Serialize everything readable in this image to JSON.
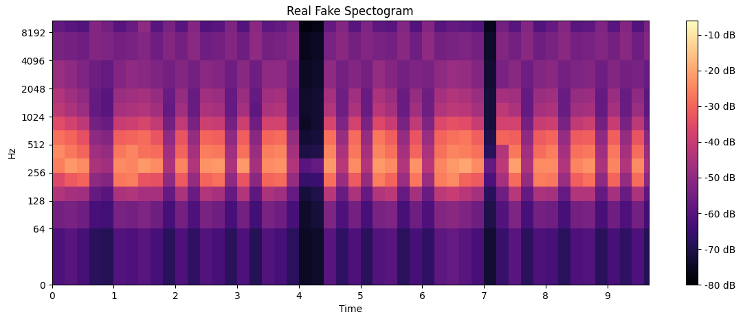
{
  "chart_data": {
    "type": "heatmap",
    "title": "Real Fake Spectogram",
    "x_label": "Time",
    "y_label": "Hz",
    "log": "y",
    "xlim": [
      0,
      9.67
    ],
    "xticks": [
      0,
      1,
      2,
      3,
      4,
      5,
      6,
      7,
      8,
      9
    ],
    "ylim": [
      0,
      11025
    ],
    "yticks": [
      0,
      64,
      128,
      256,
      512,
      1024,
      2048,
      4096,
      8192
    ],
    "time_edges": [
      0,
      0.2,
      0.4,
      0.6,
      0.8,
      1.0,
      1.2,
      1.4,
      1.6,
      1.8,
      2.0,
      2.2,
      2.4,
      2.6,
      2.8,
      3.0,
      3.2,
      3.4,
      3.6,
      3.8,
      4.0,
      4.2,
      4.4,
      4.6,
      4.8,
      5.0,
      5.2,
      5.4,
      5.6,
      5.8,
      6.0,
      6.2,
      6.4,
      6.6,
      6.8,
      7.0,
      7.2,
      7.4,
      7.6,
      7.8,
      8.0,
      8.2,
      8.4,
      8.6,
      8.8,
      9.0,
      9.2,
      9.4,
      9.6,
      9.67
    ],
    "freq_edges": [
      0,
      64,
      128,
      181,
      256,
      362,
      512,
      724,
      1024,
      1448,
      2048,
      4096,
      8192,
      11025
    ],
    "cells": [
      [
        -62,
        -60,
        -63,
        -68,
        -69,
        -61,
        -62,
        -60,
        -63,
        -68,
        -62,
        -67,
        -61,
        -63,
        -68,
        -62,
        -69,
        -61,
        -63,
        -68,
        -75,
        -74,
        -60,
        -67,
        -62,
        -68,
        -61,
        -60,
        -68,
        -63,
        -67,
        -59,
        -58,
        -60,
        -63,
        -73,
        -66,
        -60,
        -68,
        -62,
        -63,
        -68,
        -62,
        -61,
        -68,
        -63,
        -67,
        -62,
        -69
      ],
      [
        -55,
        -54,
        -56,
        -63,
        -64,
        -54,
        -55,
        -53,
        -56,
        -63,
        -55,
        -62,
        -54,
        -56,
        -63,
        -55,
        -64,
        -54,
        -56,
        -63,
        -74,
        -72,
        -53,
        -62,
        -55,
        -63,
        -54,
        -53,
        -63,
        -56,
        -62,
        -52,
        -51,
        -53,
        -56,
        -70,
        -61,
        -53,
        -63,
        -55,
        -56,
        -63,
        -55,
        -54,
        -63,
        -56,
        -62,
        -55,
        -64
      ],
      [
        -44,
        -46,
        -47,
        -58,
        -60,
        -45,
        -44,
        -46,
        -46,
        -58,
        -45,
        -57,
        -44,
        -46,
        -58,
        -44,
        -59,
        -45,
        -47,
        -58,
        -72,
        -70,
        -43,
        -57,
        -45,
        -58,
        -44,
        -42,
        -58,
        -46,
        -57,
        -42,
        -40,
        -43,
        -46,
        -68,
        -56,
        -43,
        -58,
        -45,
        -46,
        -58,
        -44,
        -44,
        -58,
        -46,
        -57,
        -45,
        -59
      ],
      [
        -36,
        -32,
        -30,
        -50,
        -52,
        -27,
        -26,
        -33,
        -34,
        -50,
        -32,
        -49,
        -30,
        -28,
        -50,
        -33,
        -51,
        -30,
        -29,
        -49,
        -66,
        -65,
        -28,
        -48,
        -32,
        -49,
        -26,
        -30,
        -48,
        -27,
        -48,
        -26,
        -24,
        -30,
        -32,
        -62,
        -46,
        -29,
        -49,
        -26,
        -27,
        -48,
        -31,
        -28,
        -50,
        -30,
        -49,
        -29,
        -51
      ],
      [
        -26,
        -22,
        -24,
        -45,
        -47,
        -24,
        -25,
        -22,
        -24,
        -45,
        -25,
        -44,
        -23,
        -22,
        -45,
        -22,
        -46,
        -24,
        -23,
        -44,
        -60,
        -58,
        -22,
        -43,
        -24,
        -44,
        -22,
        -24,
        -44,
        -23,
        -43,
        -25,
        -22,
        -20,
        -24,
        -58,
        -42,
        -21,
        -45,
        -24,
        -24,
        -44,
        -25,
        -23,
        -45,
        -25,
        -44,
        -24,
        -46
      ],
      [
        -24,
        -27,
        -30,
        -47,
        -49,
        -27,
        -25,
        -28,
        -29,
        -47,
        -30,
        -46,
        -26,
        -27,
        -47,
        -28,
        -48,
        -26,
        -25,
        -46,
        -71,
        -70,
        -25,
        -45,
        -27,
        -46,
        -25,
        -28,
        -46,
        -30,
        -45,
        -28,
        -25,
        -26,
        -28,
        -68,
        -44,
        -27,
        -47,
        -29,
        -26,
        -46,
        -28,
        -27,
        -47,
        -27,
        -46,
        -29,
        -48
      ],
      [
        -28,
        -30,
        -34,
        -50,
        -52,
        -31,
        -30,
        -29,
        -33,
        -50,
        -33,
        -49,
        -30,
        -31,
        -50,
        -31,
        -51,
        -30,
        -29,
        -49,
        -73,
        -72,
        -28,
        -48,
        -29,
        -49,
        -27,
        -31,
        -49,
        -33,
        -48,
        -30,
        -28,
        -27,
        -31,
        -70,
        -30,
        -31,
        -50,
        -32,
        -30,
        -49,
        -32,
        -31,
        -50,
        -31,
        -49,
        -33,
        -51
      ],
      [
        -35,
        -38,
        -42,
        -55,
        -57,
        -40,
        -39,
        -37,
        -41,
        -55,
        -41,
        -54,
        -39,
        -40,
        -55,
        -39,
        -56,
        -38,
        -38,
        -54,
        -75,
        -73,
        -37,
        -53,
        -38,
        -54,
        -36,
        -40,
        -54,
        -41,
        -53,
        -36,
        -34,
        -35,
        -40,
        -72,
        -38,
        -38,
        -55,
        -40,
        -39,
        -54,
        -41,
        -39,
        -55,
        -40,
        -54,
        -42,
        -56
      ],
      [
        -42,
        -45,
        -48,
        -58,
        -60,
        -46,
        -45,
        -44,
        -47,
        -58,
        -47,
        -57,
        -45,
        -46,
        -58,
        -46,
        -59,
        -45,
        -44,
        -57,
        -74,
        -73,
        -44,
        -56,
        -45,
        -57,
        -43,
        -46,
        -57,
        -47,
        -56,
        -44,
        -42,
        -43,
        -46,
        -72,
        -42,
        -45,
        -58,
        -46,
        -45,
        -57,
        -47,
        -46,
        -58,
        -46,
        -57,
        -48,
        -59
      ],
      [
        -44,
        -47,
        -50,
        -58,
        -60,
        -48,
        -47,
        -46,
        -49,
        -57,
        -49,
        -57,
        -47,
        -48,
        -58,
        -48,
        -58,
        -47,
        -46,
        -57,
        -74,
        -73,
        -46,
        -56,
        -47,
        -57,
        -45,
        -48,
        -57,
        -49,
        -56,
        -46,
        -44,
        -45,
        -48,
        -72,
        -46,
        -47,
        -58,
        -48,
        -47,
        -57,
        -49,
        -48,
        -58,
        -48,
        -57,
        -50,
        -59
      ],
      [
        -48,
        -50,
        -53,
        -56,
        -58,
        -52,
        -50,
        -51,
        -53,
        -55,
        -52,
        -55,
        -51,
        -52,
        -56,
        -51,
        -56,
        -50,
        -50,
        -55,
        -75,
        -74,
        -50,
        -55,
        -52,
        -55,
        -49,
        -52,
        -55,
        -53,
        -54,
        -50,
        -48,
        -49,
        -52,
        -73,
        -54,
        -51,
        -56,
        -52,
        -51,
        -55,
        -53,
        -52,
        -56,
        -52,
        -55,
        -54,
        -57
      ],
      [
        -54,
        -55,
        -56,
        -52,
        -53,
        -55,
        -54,
        -52,
        -56,
        -52,
        -55,
        -51,
        -56,
        -55,
        -52,
        -56,
        -50,
        -55,
        -54,
        -52,
        -76,
        -75,
        -54,
        -51,
        -55,
        -52,
        -54,
        -55,
        -51,
        -56,
        -50,
        -55,
        -54,
        -53,
        -55,
        -74,
        -52,
        -55,
        -51,
        -56,
        -54,
        -51,
        -55,
        -54,
        -52,
        -55,
        -51,
        -56,
        -52
      ],
      [
        -58,
        -60,
        -61,
        -52,
        -55,
        -60,
        -57,
        -50,
        -60,
        -54,
        -60,
        -52,
        -61,
        -60,
        -53,
        -61,
        -51,
        -59,
        -58,
        -54,
        -78,
        -77,
        -58,
        -52,
        -60,
        -53,
        -59,
        -60,
        -52,
        -61,
        -52,
        -60,
        -58,
        -59,
        -61,
        -76,
        -55,
        -60,
        -52,
        -61,
        -58,
        -52,
        -60,
        -59,
        -53,
        -60,
        -52,
        -61,
        -54
      ]
    ],
    "colorbar_range": [
      -80,
      -6
    ],
    "colorbar_ticks": [
      {
        "value": -80,
        "label": "-80 dB"
      },
      {
        "value": -70,
        "label": "-70 dB"
      },
      {
        "value": -60,
        "label": "-60 dB"
      },
      {
        "value": -50,
        "label": "-50 dB"
      },
      {
        "value": -40,
        "label": "-40 dB"
      },
      {
        "value": -30,
        "label": "-30 dB"
      },
      {
        "value": -20,
        "label": "-20 dB"
      },
      {
        "value": -10,
        "label": "-10 dB"
      }
    ]
  }
}
